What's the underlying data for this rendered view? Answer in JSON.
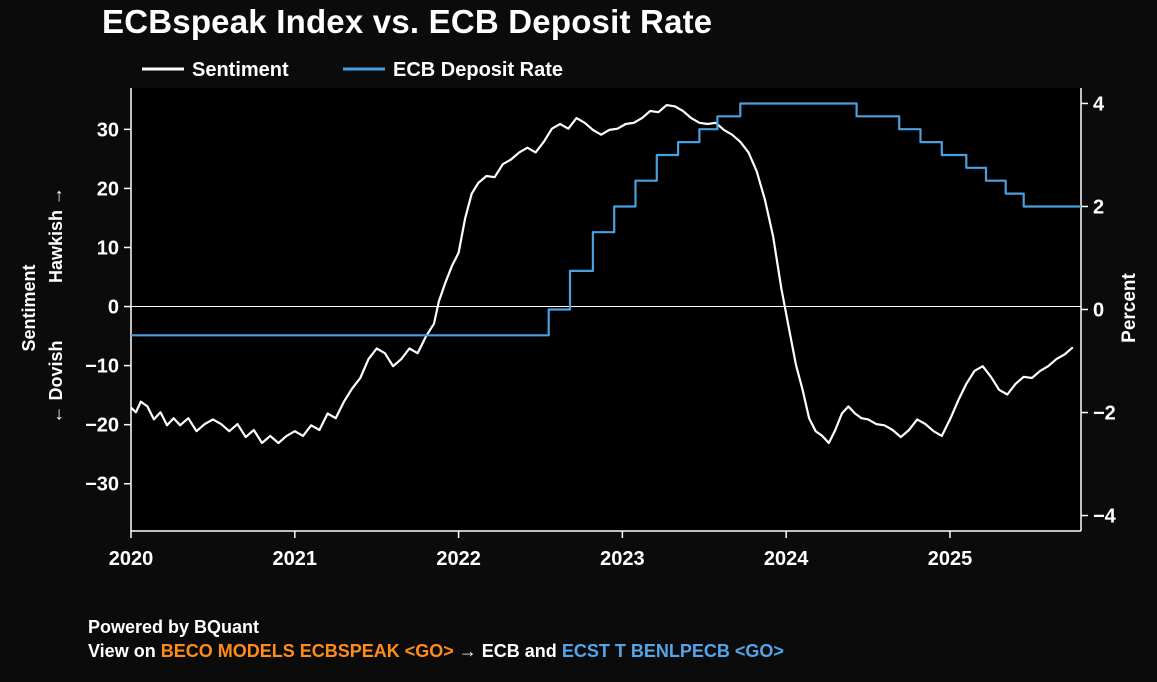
{
  "title": "ECBspeak Index vs. ECB Deposit Rate",
  "legend": {
    "sentiment": "Sentiment",
    "rate": "ECB Deposit Rate"
  },
  "colors": {
    "background": "#0b0b0b",
    "plot_background": "#000000",
    "sentiment_line": "#ffffff",
    "rate_line": "#4a9fdf",
    "accent_orange": "#ff8c1a",
    "accent_blue": "#55a4ea"
  },
  "axis_labels": {
    "left_line1": "Sentiment",
    "left_dovish": "← Dovish",
    "left_hawkish": "Hawkish →",
    "right": "Percent"
  },
  "footer": {
    "line1": "Powered by BQuant",
    "line2_prefix": "View on",
    "line2_orange": "BECO MODELS ECBSPEAK <GO>",
    "line2_middle": "→ ECB and",
    "line2_blue": "ECST T BENLPECB <GO>"
  },
  "chart_data": {
    "type": "line",
    "title": "ECBspeak Index vs. ECB Deposit Rate",
    "xlim": [
      2020.0,
      2025.8
    ],
    "x_ticks": [
      2020,
      2021,
      2022,
      2023,
      2024,
      2025
    ],
    "x_tick_labels": [
      "2020",
      "2021",
      "2022",
      "2023",
      "2024",
      "2025"
    ],
    "y_left": {
      "label": "Sentiment",
      "ylim": [
        -38,
        37
      ],
      "ticks": [
        -30,
        -20,
        -10,
        0,
        10,
        20,
        30
      ],
      "tick_labels": [
        "−30",
        "−20",
        "−10",
        "0",
        "10",
        "20",
        "30"
      ]
    },
    "y_right": {
      "label": "Percent",
      "ylim": [
        -4.3,
        4.3
      ],
      "ticks": [
        -4,
        -2,
        0,
        2,
        4
      ],
      "tick_labels": [
        "−4",
        "−2",
        "0",
        "2",
        "4"
      ]
    },
    "zero_line": true,
    "grid": false,
    "legend_position": "top-left",
    "series": [
      {
        "name": "Sentiment",
        "axis": "left",
        "x": [
          2020.0,
          2020.03,
          2020.06,
          2020.1,
          2020.14,
          2020.18,
          2020.22,
          2020.26,
          2020.3,
          2020.35,
          2020.4,
          2020.45,
          2020.5,
          2020.55,
          2020.6,
          2020.65,
          2020.7,
          2020.75,
          2020.8,
          2020.85,
          2020.9,
          2020.95,
          2021.0,
          2021.05,
          2021.1,
          2021.15,
          2021.2,
          2021.25,
          2021.3,
          2021.35,
          2021.4,
          2021.45,
          2021.5,
          2021.55,
          2021.6,
          2021.65,
          2021.7,
          2021.75,
          2021.8,
          2021.85,
          2021.88,
          2021.92,
          2021.96,
          2022.0,
          2022.04,
          2022.08,
          2022.12,
          2022.17,
          2022.22,
          2022.27,
          2022.32,
          2022.37,
          2022.42,
          2022.47,
          2022.52,
          2022.57,
          2022.62,
          2022.67,
          2022.72,
          2022.77,
          2022.82,
          2022.87,
          2022.92,
          2022.97,
          2023.02,
          2023.07,
          2023.12,
          2023.17,
          2023.22,
          2023.27,
          2023.32,
          2023.37,
          2023.42,
          2023.47,
          2023.52,
          2023.57,
          2023.62,
          2023.67,
          2023.72,
          2023.77,
          2023.82,
          2023.87,
          2023.92,
          2023.97,
          2024.02,
          2024.06,
          2024.1,
          2024.14,
          2024.18,
          2024.22,
          2024.26,
          2024.3,
          2024.34,
          2024.38,
          2024.42,
          2024.46,
          2024.5,
          2024.55,
          2024.6,
          2024.65,
          2024.7,
          2024.75,
          2024.8,
          2024.85,
          2024.9,
          2024.95,
          2025.0,
          2025.05,
          2025.1,
          2025.15,
          2025.2,
          2025.25,
          2025.3,
          2025.35,
          2025.4,
          2025.45,
          2025.5,
          2025.55,
          2025.6,
          2025.65,
          2025.7,
          2025.75
        ],
        "values": [
          -17,
          -18,
          -16,
          -17,
          -19,
          -18,
          -20,
          -19,
          -20,
          -19,
          -21,
          -20,
          -19,
          -20,
          -21,
          -20,
          -22,
          -21,
          -23,
          -22,
          -23,
          -22,
          -21,
          -22,
          -20,
          -21,
          -18,
          -19,
          -16,
          -14,
          -12,
          -9,
          -7,
          -8,
          -10,
          -9,
          -7,
          -8,
          -5,
          -3,
          1,
          4,
          7,
          9,
          15,
          19,
          21,
          22,
          22,
          24,
          25,
          26,
          27,
          26,
          28,
          30,
          31,
          30,
          32,
          31,
          30,
          29,
          30,
          30,
          31,
          31,
          32,
          33,
          33,
          34,
          34,
          33,
          32,
          31,
          31,
          31,
          30,
          29,
          28,
          26,
          23,
          18,
          12,
          3,
          -4,
          -10,
          -14,
          -19,
          -21,
          -22,
          -23,
          -21,
          -18,
          -17,
          -18,
          -19,
          -19,
          -20,
          -20,
          -21,
          -22,
          -21,
          -19,
          -20,
          -21,
          -22,
          -19,
          -16,
          -13,
          -11,
          -10,
          -12,
          -14,
          -15,
          -13,
          -12,
          -12,
          -11,
          -10,
          -9,
          -8,
          -7
        ]
      },
      {
        "name": "ECB Deposit Rate",
        "axis": "right",
        "step": true,
        "x": [
          2020.0,
          2022.55,
          2022.68,
          2022.82,
          2022.95,
          2023.08,
          2023.21,
          2023.34,
          2023.47,
          2023.58,
          2023.72,
          2024.43,
          2024.69,
          2024.82,
          2024.95,
          2025.1,
          2025.22,
          2025.34,
          2025.45,
          2025.8
        ],
        "values": [
          -0.5,
          0.0,
          0.75,
          1.5,
          2.0,
          2.5,
          3.0,
          3.25,
          3.5,
          3.75,
          4.0,
          3.75,
          3.5,
          3.25,
          3.0,
          2.75,
          2.5,
          2.25,
          2.0,
          2.0
        ]
      }
    ]
  }
}
